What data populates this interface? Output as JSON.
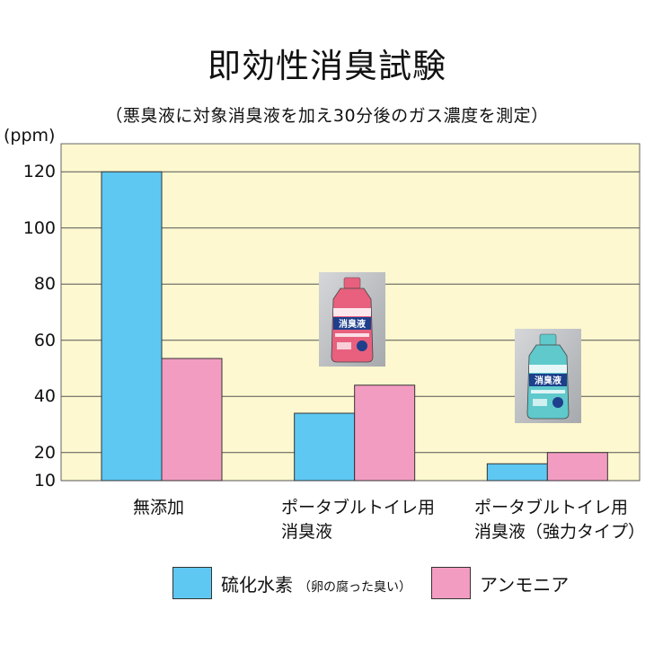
{
  "chart_data": {
    "type": "bar",
    "title": "即効性消臭試験",
    "subtitle": "（悪臭液に対象消臭液を加え30分後のガス濃度を測定）",
    "ylabel": "(ppm)",
    "yticks": [
      "10",
      "20",
      "40",
      "60",
      "80",
      "100",
      "120"
    ],
    "ylim": [
      10,
      130
    ],
    "grid": true,
    "categories": [
      [
        "無添加"
      ],
      [
        "ポータブルトイレ用",
        "消臭液"
      ],
      [
        "ポータブルトイレ用",
        "消臭液（強力タイプ）"
      ]
    ],
    "series": [
      {
        "name": "硫化水素",
        "note": "（卵の腐った臭い）",
        "color": "#5ec8f2",
        "values": [
          120,
          34,
          16
        ]
      },
      {
        "name": "アンモニア",
        "color": "#f39cc2",
        "values": [
          53.5,
          44,
          20
        ]
      }
    ],
    "legend_position": "bottom",
    "plot_background": "#fdf8cf"
  },
  "products": [
    {
      "label": "消臭液",
      "color": "#e8607e",
      "placement": "above category 2"
    },
    {
      "label": "消臭液",
      "color": "#5fc9cc",
      "placement": "above category 3"
    }
  ]
}
